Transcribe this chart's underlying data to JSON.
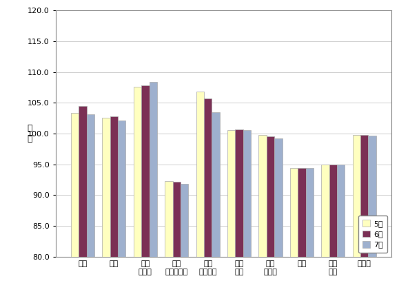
{
  "categories": [
    "食料",
    "住居",
    "光熱\n・水道",
    "家具\n・家事用品",
    "被服\n及び履物",
    "保健\n医療",
    "交通\n・通信",
    "教育",
    "教養\n娯楽",
    "諸雑費"
  ],
  "series": {
    "5月": [
      103.3,
      102.6,
      107.6,
      92.3,
      106.8,
      100.6,
      99.8,
      94.4,
      95.0,
      99.8
    ],
    "6月": [
      104.5,
      102.8,
      107.8,
      92.2,
      105.7,
      100.7,
      99.5,
      94.4,
      95.0,
      99.8
    ],
    "7月": [
      103.1,
      102.1,
      108.4,
      91.8,
      103.5,
      100.6,
      99.2,
      94.4,
      95.0,
      99.6
    ]
  },
  "colors": {
    "5月": "#FFFFC0",
    "6月": "#7B3055",
    "7月": "#9EB0CE"
  },
  "ylabel": "指\n数",
  "ylim": [
    80.0,
    120.0
  ],
  "yticks": [
    80.0,
    85.0,
    90.0,
    95.0,
    100.0,
    105.0,
    110.0,
    115.0,
    120.0
  ],
  "legend_order": [
    "5月",
    "6月",
    "7月"
  ],
  "bar_edge_color": "#aaaaaa",
  "bg_color": "#ffffff",
  "plot_bg_color": "#ffffff",
  "grid_color": "#cccccc"
}
